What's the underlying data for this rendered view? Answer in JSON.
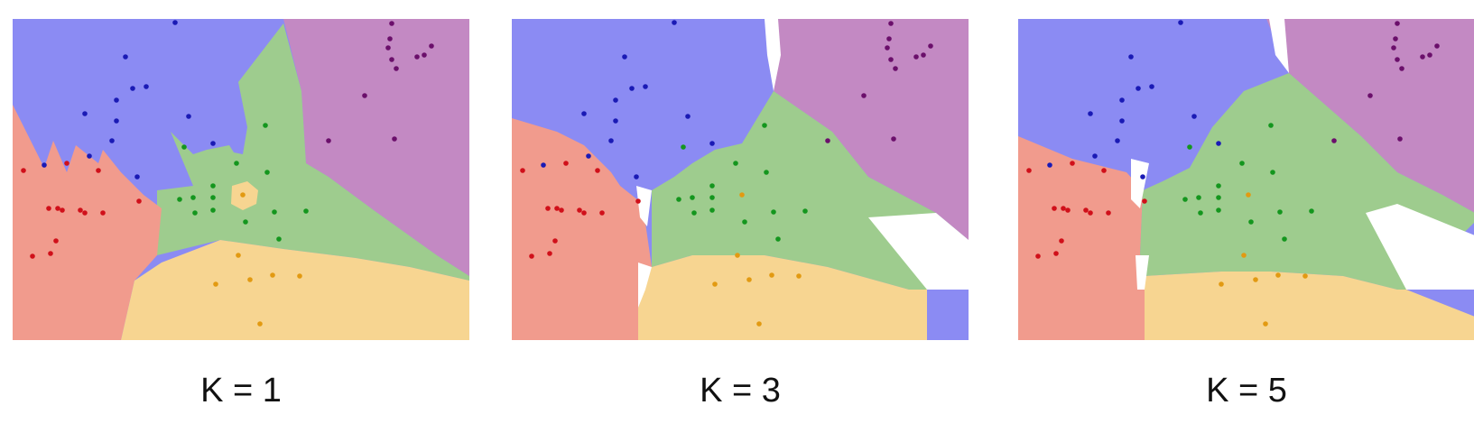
{
  "colors": {
    "blue_region": "#8b8bf3",
    "purple_region": "#c389c3",
    "green_region": "#9ecc8e",
    "red_region": "#f19b8d",
    "yellow_region": "#f7d591",
    "blue_point": "#1a1ab5",
    "purple_point": "#6b0f6b",
    "green_point": "#14961e",
    "red_point": "#d0101a",
    "yellow_point": "#e29a12"
  },
  "panels": [
    {
      "caption": "K = 1"
    },
    {
      "caption": "K = 3"
    },
    {
      "caption": "K = 5"
    }
  ]
}
